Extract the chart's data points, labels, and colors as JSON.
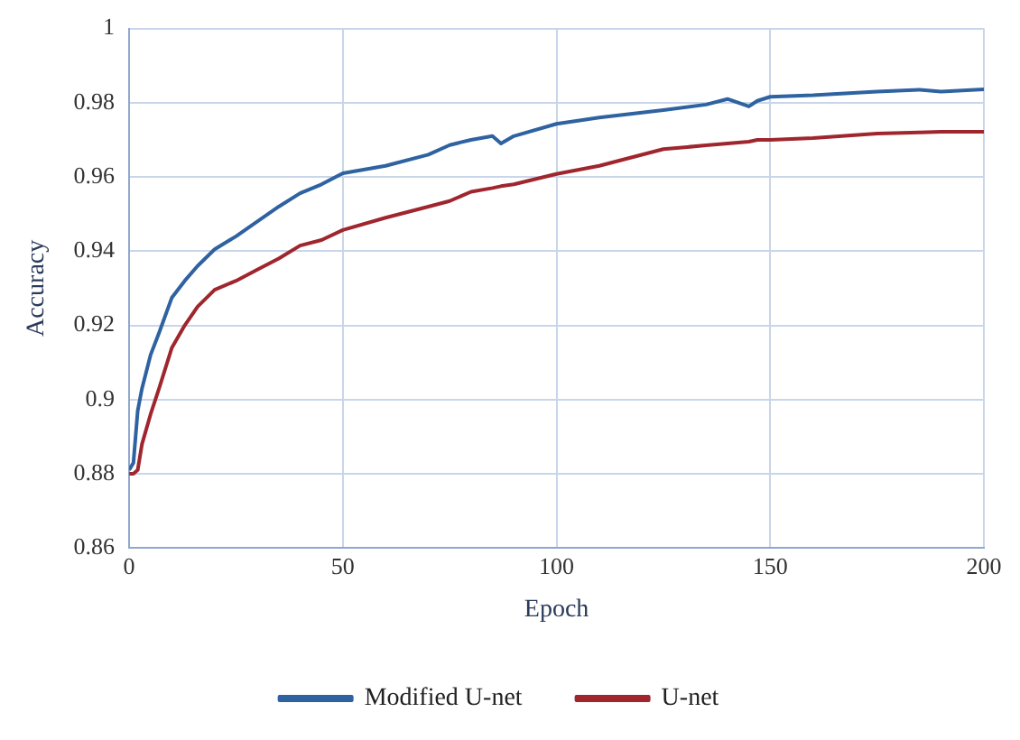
{
  "chart_data": {
    "type": "line",
    "xlabel": "Epoch",
    "ylabel": "Accuracy",
    "x": [
      0,
      1,
      2,
      3,
      5,
      7,
      10,
      13,
      16,
      20,
      25,
      30,
      35,
      40,
      45,
      50,
      60,
      70,
      75,
      80,
      85,
      87,
      90,
      100,
      110,
      125,
      135,
      140,
      145,
      147,
      150,
      160,
      175,
      185,
      190,
      200
    ],
    "series": [
      {
        "name": "Modified U-net",
        "color": "#2e62a0",
        "values": [
          0.881,
          0.883,
          0.897,
          0.903,
          0.912,
          0.918,
          0.9275,
          0.932,
          0.936,
          0.9405,
          0.944,
          0.948,
          0.952,
          0.9556,
          0.958,
          0.961,
          0.963,
          0.966,
          0.9686,
          0.97,
          0.971,
          0.969,
          0.971,
          0.9743,
          0.976,
          0.978,
          0.9795,
          0.981,
          0.979,
          0.9805,
          0.9816,
          0.982,
          0.983,
          0.9835,
          0.983,
          0.9836
        ]
      },
      {
        "name": "U-net",
        "color": "#a0262e",
        "values": [
          0.88,
          0.88,
          0.881,
          0.888,
          0.896,
          0.903,
          0.914,
          0.92,
          0.925,
          0.9296,
          0.932,
          0.935,
          0.938,
          0.9415,
          0.943,
          0.9457,
          0.949,
          0.952,
          0.9535,
          0.956,
          0.957,
          0.9575,
          0.958,
          0.9608,
          0.963,
          0.9675,
          0.9685,
          0.969,
          0.9695,
          0.97,
          0.97,
          0.9705,
          0.9717,
          0.972,
          0.9722,
          0.9722
        ]
      }
    ],
    "xlim": [
      0,
      200
    ],
    "xticks": [
      0,
      50,
      100,
      150,
      200
    ],
    "ylim": [
      0.86,
      1
    ],
    "yticks": [
      0.86,
      0.88,
      0.9,
      0.92,
      0.94,
      0.96,
      0.98,
      1
    ],
    "grid": true,
    "legend": "bottom",
    "marker": "none",
    "line_style": "solid"
  }
}
